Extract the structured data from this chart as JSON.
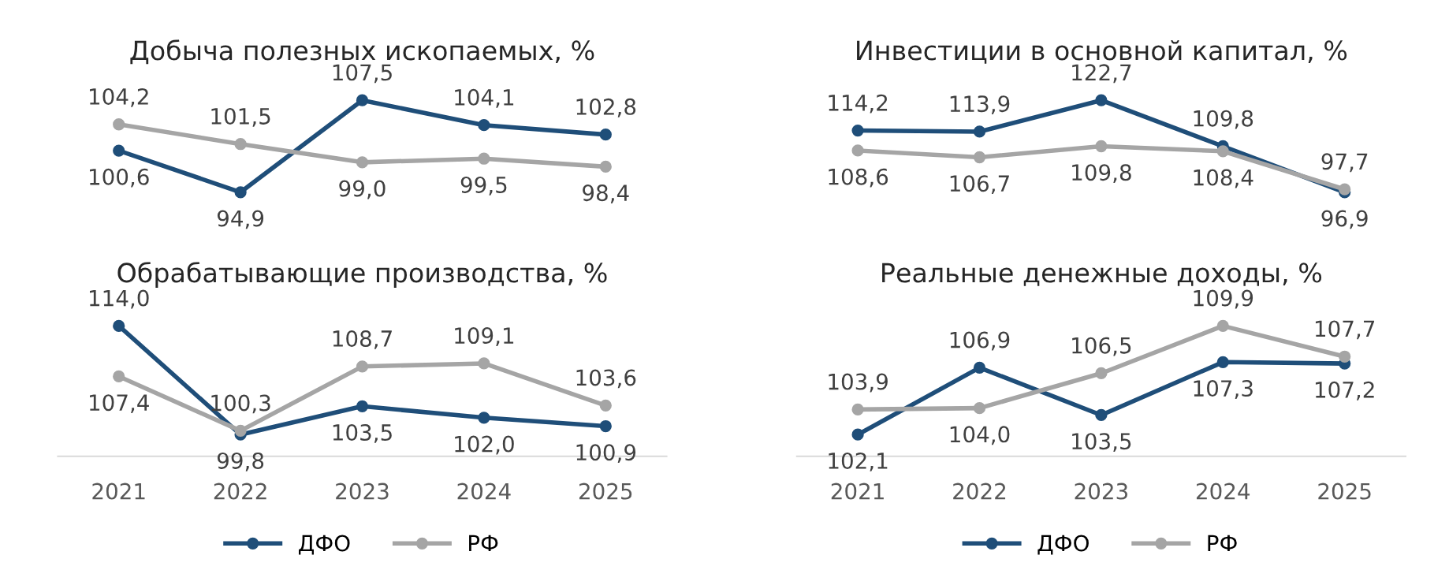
{
  "chart_data": [
    {
      "type": "line",
      "title": "Добыча полезных ископаемых, %",
      "categories": [
        "2021",
        "2022",
        "2023",
        "2024",
        "2025"
      ],
      "tick_labels": false,
      "legend": "bottom",
      "grid": false,
      "marker": "circle",
      "series": [
        {
          "name": "ДФО",
          "color": "#1f4e79",
          "values": [
            100.6,
            94.9,
            107.5,
            104.1,
            102.8
          ],
          "value_labels": [
            "100,6",
            "94,9",
            "107,5",
            "104,1",
            "102,8"
          ]
        },
        {
          "name": "РФ",
          "color": "#a5a5a5",
          "values": [
            104.2,
            101.5,
            99.0,
            99.5,
            98.4
          ],
          "value_labels": [
            "104,2",
            "101,5",
            "99,0",
            "99,5",
            "98,4"
          ]
        }
      ]
    },
    {
      "type": "line",
      "title": "Инвестиции в основной капитал, %",
      "categories": [
        "2021",
        "2022",
        "2023",
        "2024",
        "2025"
      ],
      "tick_labels": false,
      "legend": "bottom",
      "grid": false,
      "marker": "circle",
      "series": [
        {
          "name": "ДФО",
          "color": "#1f4e79",
          "values": [
            114.2,
            113.9,
            122.7,
            109.8,
            96.9
          ],
          "value_labels": [
            "114,2",
            "113,9",
            "122,7",
            "109,8",
            "96,9"
          ]
        },
        {
          "name": "РФ",
          "color": "#a5a5a5",
          "values": [
            108.6,
            106.7,
            109.8,
            108.4,
            97.7
          ],
          "value_labels": [
            "108,6",
            "106,7",
            "109,8",
            "108,4",
            "97,7"
          ]
        }
      ]
    },
    {
      "type": "line",
      "title": "Обрабатывающие производства, %",
      "categories": [
        "2021",
        "2022",
        "2023",
        "2024",
        "2025"
      ],
      "tick_labels": "x",
      "grid": false,
      "marker": "circle",
      "series": [
        {
          "color": "#1f4e79",
          "values": [
            114.0,
            99.8,
            103.5,
            102.0,
            100.9
          ],
          "value_labels": [
            "114,0",
            "99,8",
            "103,5",
            "102,0",
            "100,9"
          ]
        },
        {
          "color": "#a5a5a5",
          "values": [
            107.4,
            100.3,
            108.7,
            109.1,
            103.6
          ],
          "value_labels": [
            "107,4",
            "100,3",
            "108,7",
            "109,1",
            "103,6"
          ]
        }
      ]
    },
    {
      "type": "line",
      "title": "Реальные денежные доходы, %",
      "categories": [
        "2021",
        "2022",
        "2023",
        "2024",
        "2025"
      ],
      "tick_labels": "x",
      "grid": false,
      "marker": "circle",
      "series": [
        {
          "color": "#1f4e79",
          "values": [
            102.1,
            106.9,
            103.5,
            107.3,
            107.2
          ],
          "value_labels": [
            "102,1",
            "106,9",
            "103,5",
            "107,3",
            "107,2"
          ]
        },
        {
          "color": "#a5a5a5",
          "values": [
            103.9,
            104.0,
            106.5,
            109.9,
            107.7
          ],
          "value_labels": [
            "103,9",
            "104,0",
            "106,5",
            "109,9",
            "107,7"
          ]
        }
      ]
    }
  ]
}
